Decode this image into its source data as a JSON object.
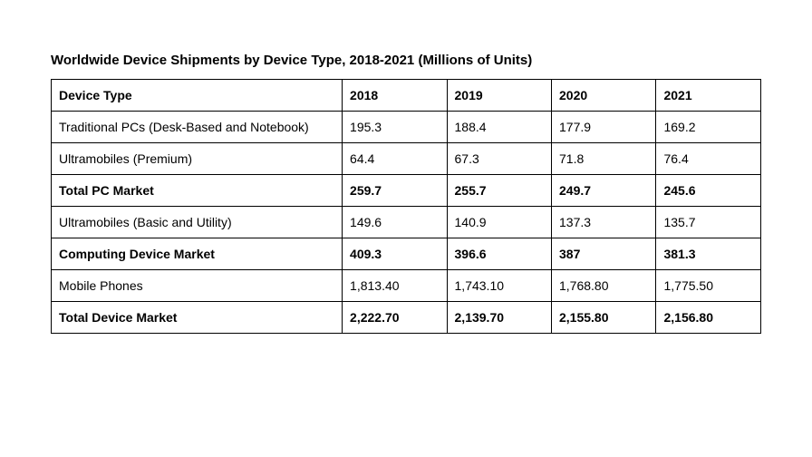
{
  "title": "Worldwide Device Shipments by Device Type, 2018-2021 (Millions of Units)",
  "table": {
    "columns": [
      "Device Type",
      "2018",
      "2019",
      "2020",
      "2021"
    ],
    "column_widths_pct": [
      41,
      14.75,
      14.75,
      14.75,
      14.75
    ],
    "border_color": "#000000",
    "font_size": 14,
    "header_bold": true,
    "rows": [
      {
        "bold": false,
        "cells": [
          "Traditional PCs (Desk-Based and Notebook)",
          "195.3",
          "188.4",
          "177.9",
          "169.2"
        ]
      },
      {
        "bold": false,
        "cells": [
          "Ultramobiles (Premium)",
          "64.4",
          "67.3",
          "71.8",
          "76.4"
        ]
      },
      {
        "bold": true,
        "cells": [
          "Total PC Market",
          "259.7",
          "255.7",
          "249.7",
          "245.6"
        ]
      },
      {
        "bold": false,
        "cells": [
          "Ultramobiles (Basic and Utility)",
          "149.6",
          "140.9",
          "137.3",
          "135.7"
        ]
      },
      {
        "bold": true,
        "cells": [
          "Computing Device Market",
          "409.3",
          "396.6",
          "387",
          "381.3"
        ]
      },
      {
        "bold": false,
        "cells": [
          "Mobile Phones",
          "1,813.40",
          "1,743.10",
          "1,768.80",
          "1,775.50"
        ]
      },
      {
        "bold": true,
        "cells": [
          "Total Device Market",
          "2,222.70",
          "2,139.70",
          "2,155.80",
          "2,156.80"
        ]
      }
    ]
  },
  "colors": {
    "background": "#ffffff",
    "text": "#000000",
    "border": "#000000"
  }
}
